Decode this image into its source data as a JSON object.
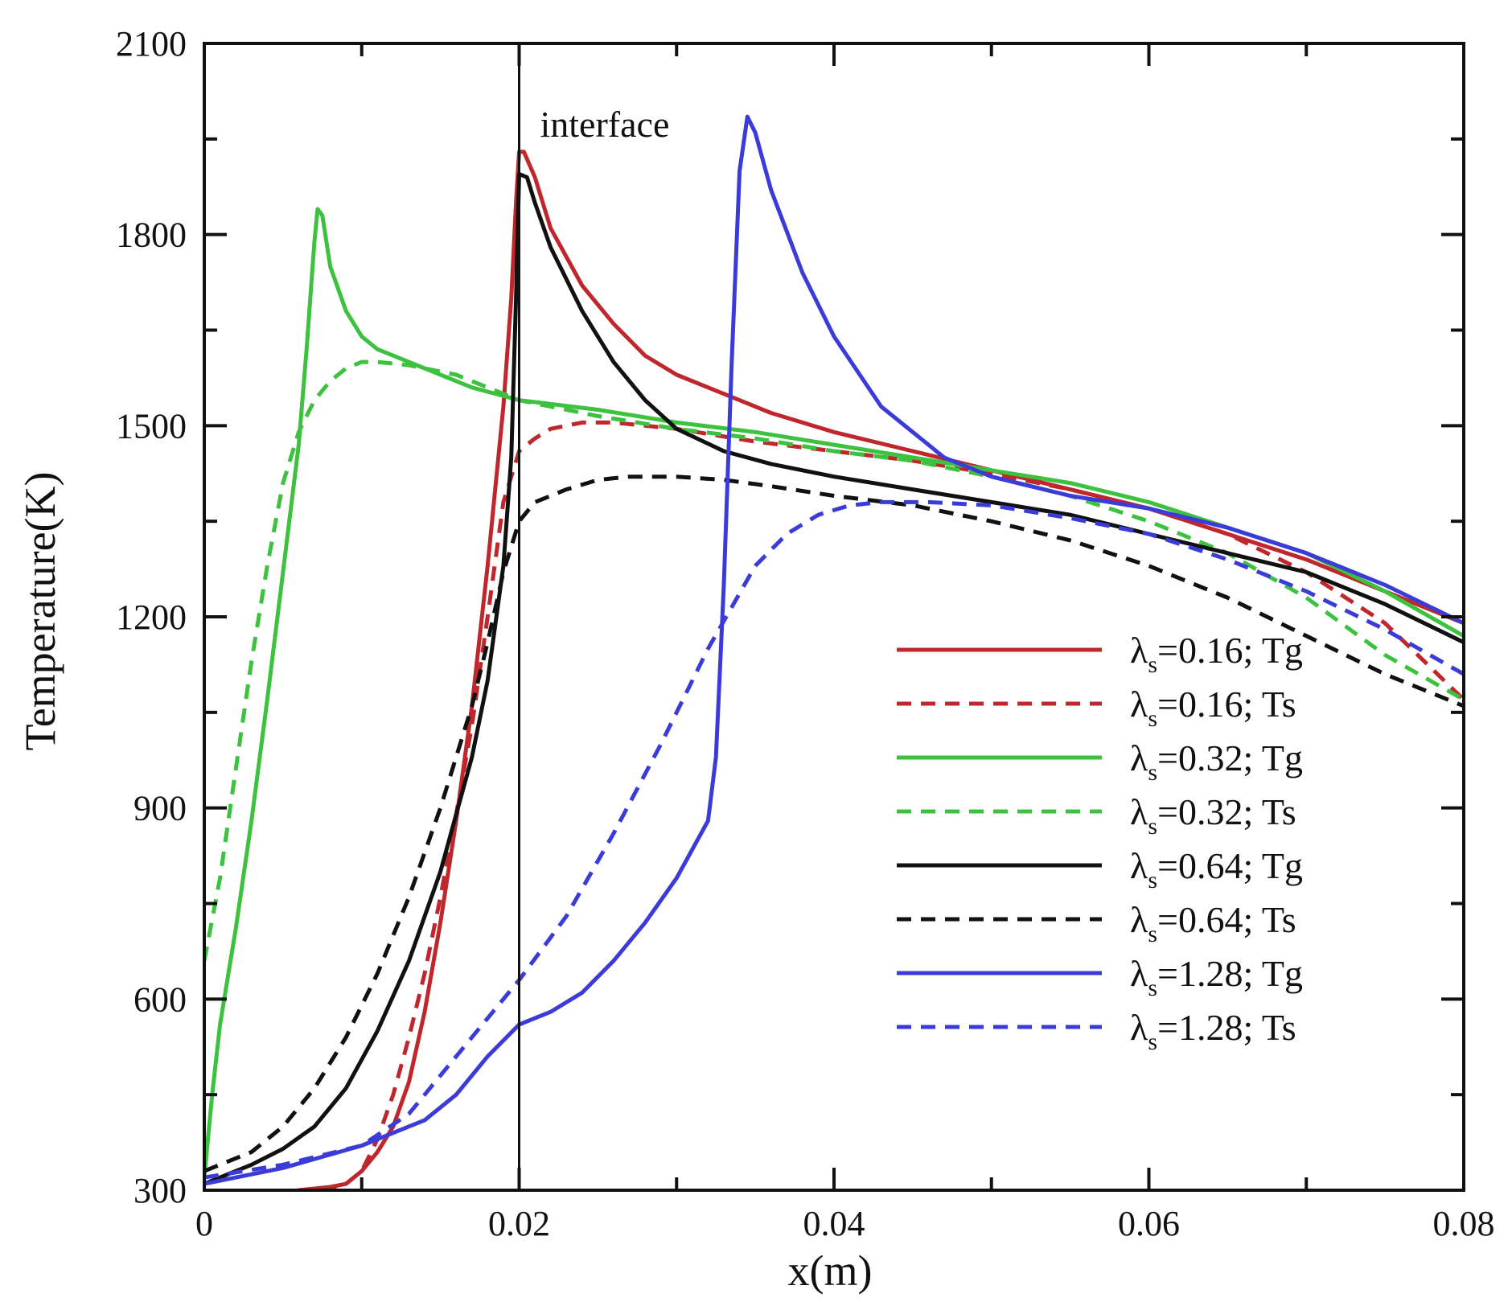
{
  "chart_data": {
    "type": "line",
    "title": "",
    "xlabel": "x(m)",
    "ylabel": "Temperature(K)",
    "xlim": [
      0,
      0.08
    ],
    "ylim": [
      300,
      2100
    ],
    "xticks": [
      0,
      0.02,
      0.04,
      0.06,
      0.08
    ],
    "xtick_labels": [
      "0",
      "0.02",
      "0.04",
      "0.06",
      "0.08"
    ],
    "yticks": [
      300,
      600,
      900,
      1200,
      1500,
      1800,
      2100
    ],
    "ytick_labels": [
      "300",
      "600",
      "900",
      "1200",
      "1500",
      "1800",
      "2100"
    ],
    "grid": false,
    "legend_position": "center-right",
    "annotation": {
      "text": "interface",
      "x": 0.02
    },
    "series": [
      {
        "name": "λs=0.16; Tg",
        "lambda": "0.16",
        "var": "Tg",
        "color": "#c0272d",
        "style": "solid",
        "x": [
          0.006,
          0.008,
          0.009,
          0.01,
          0.011,
          0.012,
          0.013,
          0.014,
          0.015,
          0.016,
          0.017,
          0.018,
          0.019,
          0.0195,
          0.0198,
          0.02,
          0.0203,
          0.021,
          0.022,
          0.024,
          0.026,
          0.028,
          0.03,
          0.033,
          0.036,
          0.04,
          0.045,
          0.05,
          0.055,
          0.06,
          0.065,
          0.07,
          0.075,
          0.08
        ],
        "y": [
          300,
          305,
          310,
          330,
          360,
          400,
          470,
          580,
          720,
          880,
          1060,
          1280,
          1530,
          1700,
          1850,
          1930,
          1930,
          1890,
          1810,
          1720,
          1660,
          1610,
          1580,
          1550,
          1520,
          1490,
          1460,
          1430,
          1400,
          1370,
          1330,
          1290,
          1240,
          1190
        ]
      },
      {
        "name": "λs=0.16; Ts",
        "lambda": "0.16",
        "var": "Ts",
        "color": "#c0272d",
        "style": "dashed",
        "x": [
          0.0075,
          0.009,
          0.01,
          0.011,
          0.012,
          0.013,
          0.014,
          0.015,
          0.016,
          0.017,
          0.018,
          0.019,
          0.02,
          0.021,
          0.022,
          0.024,
          0.026,
          0.03,
          0.035,
          0.04,
          0.045,
          0.05,
          0.055,
          0.06,
          0.065,
          0.07,
          0.075,
          0.08
        ],
        "y": [
          300,
          310,
          330,
          380,
          450,
          540,
          640,
          760,
          890,
          1030,
          1200,
          1380,
          1460,
          1480,
          1495,
          1505,
          1505,
          1495,
          1475,
          1460,
          1445,
          1425,
          1400,
          1370,
          1330,
          1270,
          1190,
          1070
        ]
      },
      {
        "name": "λs=0.32; Tg",
        "lambda": "0.32",
        "var": "Tg",
        "color": "#3cc23f",
        "style": "solid",
        "x": [
          0.0,
          0.0005,
          0.001,
          0.002,
          0.003,
          0.004,
          0.005,
          0.006,
          0.0065,
          0.007,
          0.0072,
          0.0075,
          0.008,
          0.009,
          0.01,
          0.011,
          0.012,
          0.014,
          0.017,
          0.02,
          0.025,
          0.03,
          0.035,
          0.04,
          0.045,
          0.05,
          0.055,
          0.06,
          0.065,
          0.07,
          0.075,
          0.08
        ],
        "y": [
          320,
          450,
          560,
          710,
          880,
          1070,
          1270,
          1470,
          1620,
          1790,
          1840,
          1830,
          1750,
          1680,
          1640,
          1620,
          1610,
          1590,
          1560,
          1540,
          1525,
          1505,
          1490,
          1470,
          1450,
          1430,
          1410,
          1380,
          1340,
          1300,
          1240,
          1170
        ]
      },
      {
        "name": "λs=0.32; Ts",
        "lambda": "0.32",
        "var": "Ts",
        "color": "#3cc23f",
        "style": "dashed",
        "x": [
          0.0,
          0.001,
          0.002,
          0.003,
          0.004,
          0.005,
          0.006,
          0.007,
          0.008,
          0.009,
          0.01,
          0.011,
          0.013,
          0.016,
          0.02,
          0.025,
          0.03,
          0.035,
          0.04,
          0.045,
          0.05,
          0.055,
          0.06,
          0.065,
          0.07,
          0.075,
          0.08
        ],
        "y": [
          660,
          790,
          960,
          1130,
          1280,
          1410,
          1490,
          1540,
          1570,
          1590,
          1600,
          1600,
          1595,
          1580,
          1540,
          1515,
          1495,
          1480,
          1460,
          1445,
          1420,
          1390,
          1350,
          1300,
          1230,
          1140,
          1070
        ]
      },
      {
        "name": "λs=0.64; Tg",
        "lambda": "0.64",
        "var": "Tg",
        "color": "#111111",
        "style": "solid",
        "x": [
          0.0,
          0.003,
          0.005,
          0.007,
          0.009,
          0.011,
          0.013,
          0.015,
          0.017,
          0.018,
          0.019,
          0.0195,
          0.0198,
          0.02,
          0.0205,
          0.021,
          0.022,
          0.024,
          0.026,
          0.028,
          0.03,
          0.033,
          0.036,
          0.04,
          0.045,
          0.05,
          0.055,
          0.06,
          0.065,
          0.07,
          0.075,
          0.08
        ],
        "y": [
          310,
          340,
          365,
          400,
          460,
          550,
          660,
          800,
          980,
          1100,
          1280,
          1450,
          1700,
          1895,
          1890,
          1850,
          1780,
          1680,
          1600,
          1540,
          1495,
          1460,
          1440,
          1420,
          1400,
          1380,
          1360,
          1330,
          1300,
          1270,
          1220,
          1160
        ]
      },
      {
        "name": "λs=0.64; Ts",
        "lambda": "0.64",
        "var": "Ts",
        "color": "#111111",
        "style": "dashed",
        "x": [
          0.0,
          0.003,
          0.005,
          0.007,
          0.009,
          0.011,
          0.013,
          0.015,
          0.017,
          0.018,
          0.019,
          0.02,
          0.021,
          0.023,
          0.025,
          0.027,
          0.03,
          0.033,
          0.036,
          0.04,
          0.045,
          0.05,
          0.055,
          0.06,
          0.065,
          0.07,
          0.075,
          0.08
        ],
        "y": [
          330,
          360,
          400,
          460,
          540,
          640,
          760,
          900,
          1060,
          1160,
          1270,
          1350,
          1380,
          1400,
          1415,
          1420,
          1420,
          1415,
          1405,
          1390,
          1375,
          1350,
          1320,
          1280,
          1230,
          1170,
          1110,
          1060
        ]
      },
      {
        "name": "λs=1.28; Tg",
        "lambda": "1.28",
        "var": "Tg",
        "color": "#3b3bd9",
        "style": "solid",
        "x": [
          0.0,
          0.005,
          0.01,
          0.012,
          0.014,
          0.016,
          0.018,
          0.02,
          0.022,
          0.024,
          0.026,
          0.028,
          0.03,
          0.032,
          0.0325,
          0.033,
          0.0335,
          0.034,
          0.0345,
          0.035,
          0.036,
          0.038,
          0.04,
          0.043,
          0.047,
          0.05,
          0.055,
          0.06,
          0.065,
          0.07,
          0.075,
          0.08
        ],
        "y": [
          310,
          335,
          370,
          390,
          410,
          450,
          510,
          560,
          580,
          610,
          660,
          720,
          790,
          880,
          980,
          1250,
          1600,
          1900,
          1985,
          1960,
          1870,
          1740,
          1640,
          1530,
          1450,
          1420,
          1390,
          1370,
          1340,
          1300,
          1250,
          1190
        ]
      },
      {
        "name": "λs=1.28; Ts",
        "lambda": "1.28",
        "var": "Ts",
        "color": "#3b3bd9",
        "style": "dashed",
        "x": [
          0.0,
          0.005,
          0.01,
          0.013,
          0.016,
          0.02,
          0.023,
          0.026,
          0.029,
          0.032,
          0.035,
          0.037,
          0.039,
          0.041,
          0.043,
          0.046,
          0.05,
          0.055,
          0.06,
          0.065,
          0.07,
          0.075,
          0.08
        ],
        "y": [
          320,
          340,
          370,
          420,
          510,
          630,
          730,
          860,
          1000,
          1150,
          1280,
          1330,
          1360,
          1375,
          1380,
          1380,
          1375,
          1355,
          1330,
          1290,
          1240,
          1180,
          1110
        ]
      }
    ]
  }
}
